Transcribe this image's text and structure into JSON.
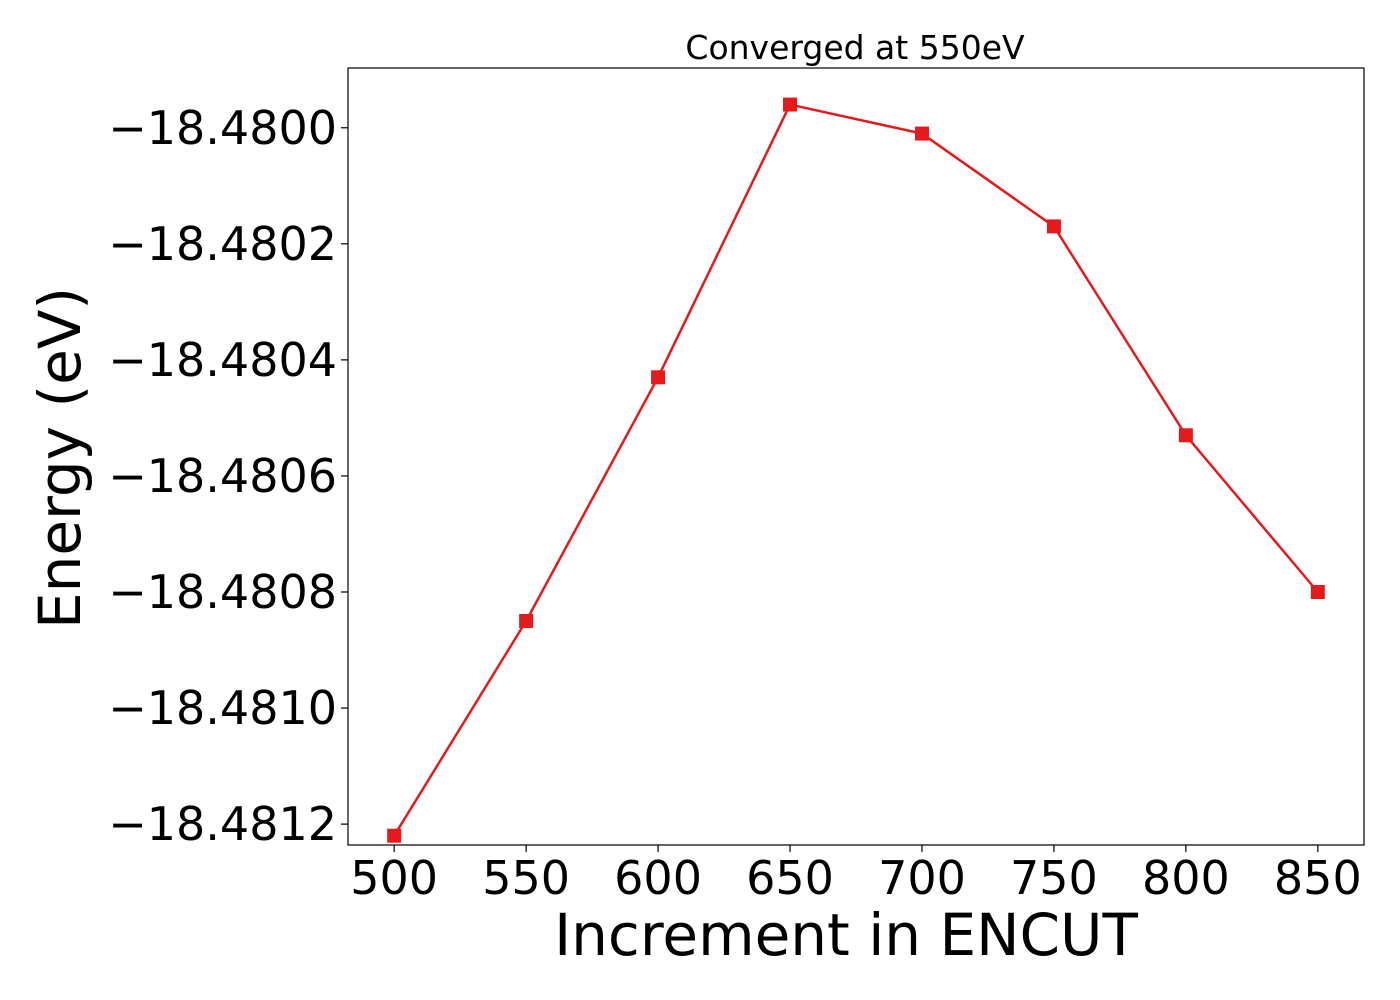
{
  "chart_data": {
    "type": "line",
    "title": "Converged at 550eV",
    "xlabel": "Increment in ENCUT",
    "ylabel": "Energy (eV)",
    "x": [
      500,
      550,
      600,
      650,
      700,
      750,
      800,
      850
    ],
    "series": [
      {
        "values": [
          -18.48122,
          -18.48085,
          -18.48043,
          -18.47996,
          -18.48001,
          -18.48017,
          -18.48053,
          -18.4808
        ],
        "color": "#e41a1c",
        "marker": "square"
      }
    ],
    "xticks": [
      500,
      550,
      600,
      650,
      700,
      750,
      800,
      850
    ],
    "xtick_labels": [
      "500",
      "550",
      "600",
      "650",
      "700",
      "750",
      "800",
      "850"
    ],
    "yticks": [
      -18.4812,
      -18.481,
      -18.4808,
      -18.4806,
      -18.4804,
      -18.4802,
      -18.48
    ],
    "ytick_labels": [
      "−18.4812",
      "−18.4810",
      "−18.4808",
      "−18.4806",
      "−18.4804",
      "−18.4802",
      "−18.4800"
    ],
    "xlim": [
      482.5,
      867.5
    ],
    "ylim": [
      -18.481236,
      -18.479897
    ],
    "grid": false,
    "legend": "none"
  }
}
